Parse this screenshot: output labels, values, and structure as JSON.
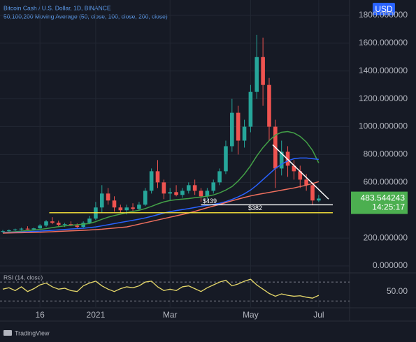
{
  "chart_data": [
    {
      "type": "candlestick",
      "title": "Bitcoin Cash / U.S. Dollar, 1D, BINANCE",
      "subtitle": "50,100,200 Moving Average (50, close, 100, close, 200, close)",
      "currency": "USD",
      "categories": [
        null,
        null,
        null,
        null,
        null,
        null,
        "16",
        null,
        null,
        null,
        null,
        null,
        null,
        null,
        null,
        "2021",
        null,
        null,
        null,
        null,
        null,
        null,
        null,
        null,
        null,
        null,
        null,
        "Mar",
        null,
        null,
        null,
        null,
        null,
        null,
        null,
        null,
        null,
        null,
        null,
        null,
        "May",
        null,
        null,
        null,
        null,
        null,
        null,
        null,
        null,
        null,
        null,
        "Jul"
      ],
      "open": [
        245,
        250,
        256,
        262,
        268,
        262,
        270,
        290,
        320,
        310,
        295,
        300,
        290,
        280,
        310,
        340,
        420,
        520,
        470,
        420,
        400,
        420,
        410,
        440,
        540,
        680,
        600,
        520,
        530,
        510,
        540,
        580,
        540,
        500,
        540,
        600,
        680,
        860,
        1100,
        900,
        1000,
        1250,
        1500,
        1300,
        1000,
        700,
        820,
        720,
        680,
        620,
        580,
        470
      ],
      "high": [
        258,
        262,
        268,
        275,
        285,
        275,
        300,
        330,
        350,
        325,
        310,
        320,
        305,
        320,
        360,
        460,
        580,
        560,
        500,
        440,
        440,
        450,
        460,
        560,
        700,
        760,
        620,
        560,
        580,
        560,
        600,
        620,
        560,
        560,
        620,
        700,
        900,
        1200,
        1150,
        1050,
        1300,
        1660,
        1640,
        1350,
        1050,
        900,
        860,
        760,
        720,
        660,
        600,
        510
      ],
      "low": [
        238,
        244,
        250,
        255,
        260,
        255,
        265,
        280,
        300,
        285,
        280,
        285,
        270,
        275,
        300,
        330,
        380,
        440,
        390,
        380,
        370,
        390,
        400,
        430,
        520,
        560,
        480,
        470,
        500,
        490,
        520,
        510,
        460,
        480,
        520,
        580,
        660,
        820,
        800,
        850,
        960,
        1200,
        1150,
        900,
        560,
        650,
        640,
        620,
        560,
        540,
        440,
        460
      ],
      "close": [
        250,
        256,
        262,
        268,
        262,
        270,
        290,
        320,
        310,
        295,
        300,
        290,
        280,
        310,
        340,
        420,
        520,
        470,
        420,
        400,
        420,
        410,
        440,
        540,
        680,
        600,
        520,
        530,
        510,
        540,
        580,
        540,
        500,
        540,
        600,
        680,
        860,
        1100,
        900,
        1000,
        1250,
        1500,
        1300,
        1000,
        700,
        820,
        720,
        680,
        620,
        580,
        470,
        484
      ],
      "up_color": "#26a69a",
      "down_color": "#ef5350",
      "moving_averages": [
        {
          "color": "#43a047",
          "values": [
            240,
            243,
            246,
            250,
            254,
            258,
            262,
            268,
            275,
            282,
            288,
            292,
            296,
            300,
            305,
            318,
            335,
            350,
            362,
            372,
            382,
            392,
            400,
            412,
            428,
            445,
            460,
            470,
            476,
            480,
            484,
            490,
            495,
            500,
            510,
            525,
            545,
            570,
            610,
            660,
            720,
            790,
            850,
            900,
            940,
            960,
            965,
            955,
            930,
            890,
            830,
            740
          ]
        },
        {
          "color": "#2962ff",
          "values": [
            238,
            240,
            242,
            244,
            246,
            248,
            250,
            253,
            256,
            259,
            262,
            265,
            268,
            271,
            275,
            280,
            288,
            296,
            304,
            312,
            320,
            328,
            336,
            345,
            356,
            368,
            380,
            390,
            398,
            405,
            412,
            420,
            428,
            435,
            442,
            450,
            462,
            478,
            496,
            518,
            545,
            580,
            620,
            660,
            700,
            730,
            755,
            770,
            775,
            775,
            770,
            765
          ]
        },
        {
          "color": "#ef6f5e",
          "values": [
            236,
            237,
            238,
            239,
            240,
            241,
            242,
            244,
            246,
            248,
            250,
            252,
            254,
            256,
            258,
            261,
            264,
            268,
            272,
            276,
            280,
            290,
            300,
            310,
            320,
            330,
            340,
            350,
            360,
            370,
            380,
            392,
            405,
            418,
            430,
            442,
            455,
            468,
            480,
            492,
            503,
            512,
            520,
            528,
            536,
            544,
            552,
            560,
            570,
            580,
            592,
            605
          ]
        }
      ],
      "levels": [
        {
          "value": 439,
          "label": "$439",
          "color": "#ffffff"
        },
        {
          "value": 382,
          "label": "$382",
          "color": "#ffeb3b"
        }
      ],
      "trendline": {
        "color": "#ffffff",
        "values": [
          870,
          480
        ]
      },
      "last_price": 483.544243,
      "countdown": "14:25:17",
      "last_color": "#4caf50",
      "ylim": [
        -45,
        1890
      ],
      "yticks": [
        {
          "value": 0,
          "label": "0.000000"
        },
        {
          "value": 200,
          "label": "200.000000"
        },
        {
          "value": 600,
          "label": "600.000000"
        },
        {
          "value": 800,
          "label": "800.000000"
        },
        {
          "value": 1000,
          "label": "1000.000000"
        },
        {
          "value": 1200,
          "label": "1200.000000"
        },
        {
          "value": 1400,
          "label": "1400.000000"
        },
        {
          "value": 1600,
          "label": "1600.000000"
        },
        {
          "value": 1800,
          "label": "1800.000000"
        }
      ],
      "grid": true
    },
    {
      "type": "line",
      "title": "RSI (14, close)",
      "color": "#e6d86a",
      "values": [
        55,
        58,
        52,
        60,
        50,
        56,
        64,
        68,
        60,
        55,
        57,
        52,
        50,
        62,
        68,
        72,
        62,
        55,
        50,
        56,
        60,
        58,
        62,
        70,
        72,
        60,
        52,
        55,
        52,
        60,
        62,
        56,
        50,
        58,
        64,
        70,
        74,
        62,
        66,
        72,
        76,
        64,
        55,
        46,
        40,
        45,
        42,
        40,
        41,
        38,
        36,
        42
      ],
      "bands": [
        70,
        30
      ],
      "ylim": [
        17,
        88
      ],
      "yticks": [
        {
          "value": 50,
          "label": "50.00"
        }
      ]
    }
  ],
  "footer": "TradingView"
}
